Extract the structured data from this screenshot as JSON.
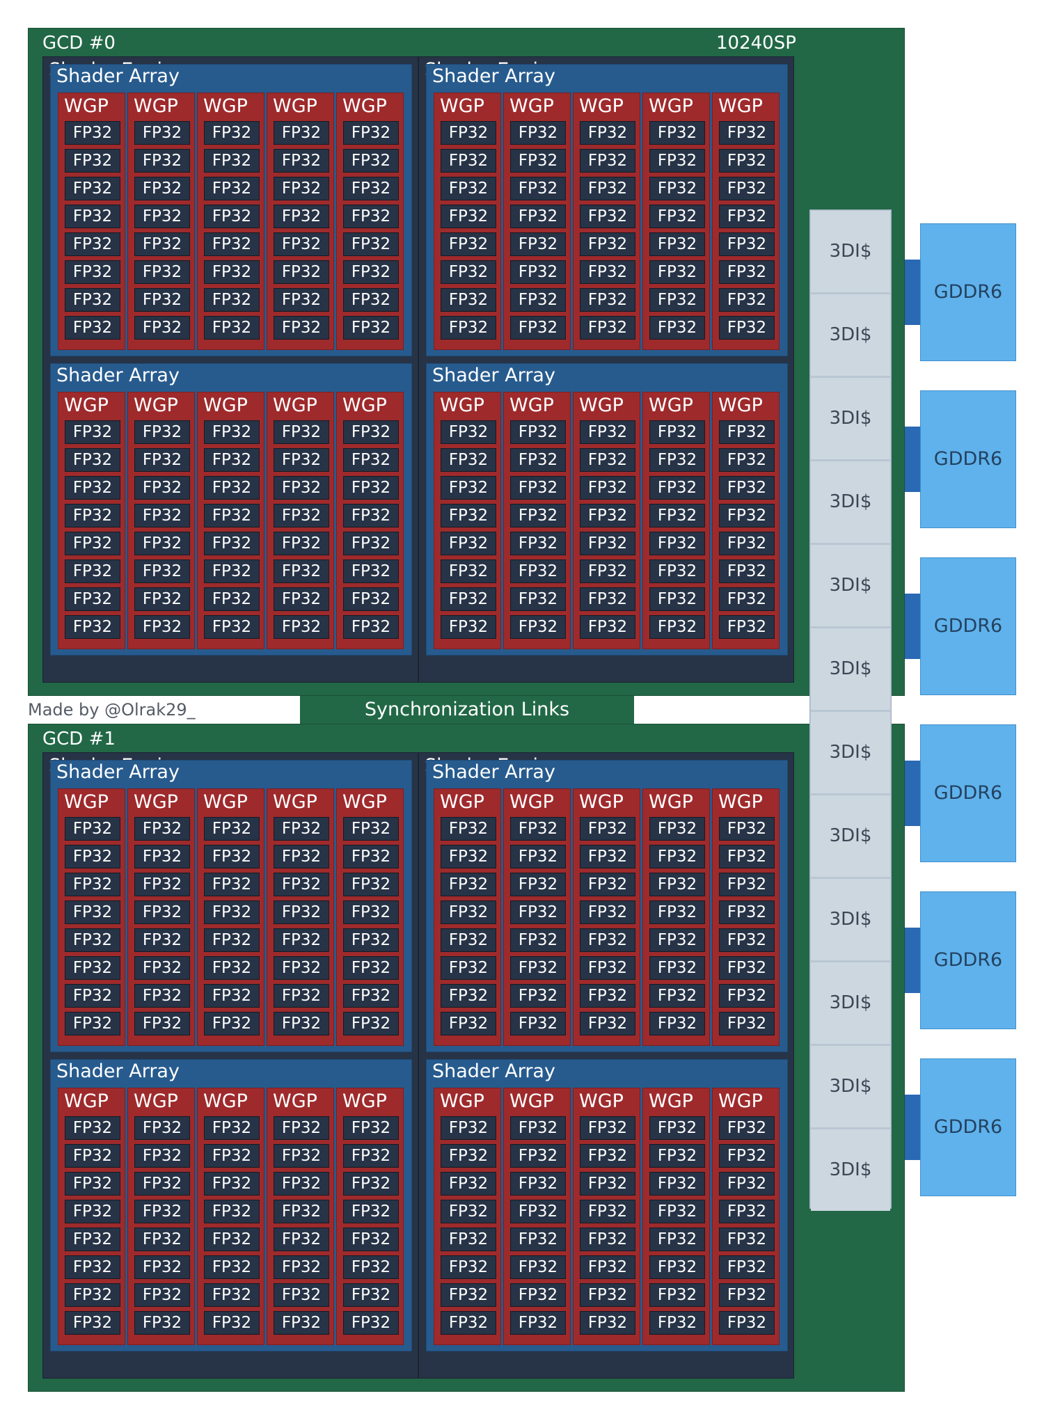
{
  "gcds": [
    {
      "label": "GCD #0",
      "sp": "10240SP"
    },
    {
      "label": "GCD #1",
      "sp": ""
    }
  ],
  "shader_engine_label": "Shader Engine",
  "shader_array_label": "Shader Array",
  "wgp_label": "WGP",
  "fp_label": "FP32",
  "fp_per_wgp": 8,
  "wgp_per_array": 5,
  "cache_label": "3DI$",
  "cache_count": 12,
  "memory_label": "GDDR6",
  "memory_count": 6,
  "sync_label": "Synchronization Links",
  "credit": "Made by @Olrak29_",
  "colors": {
    "gcd": "#226846",
    "shader_engine": "#273346",
    "shader_array": "#275b8e",
    "wgp": "#9e2a2c",
    "fp32": "#273346",
    "cache": "#cdd7e0",
    "memory": "#60b2ec",
    "memory_link": "#2a69b4"
  }
}
